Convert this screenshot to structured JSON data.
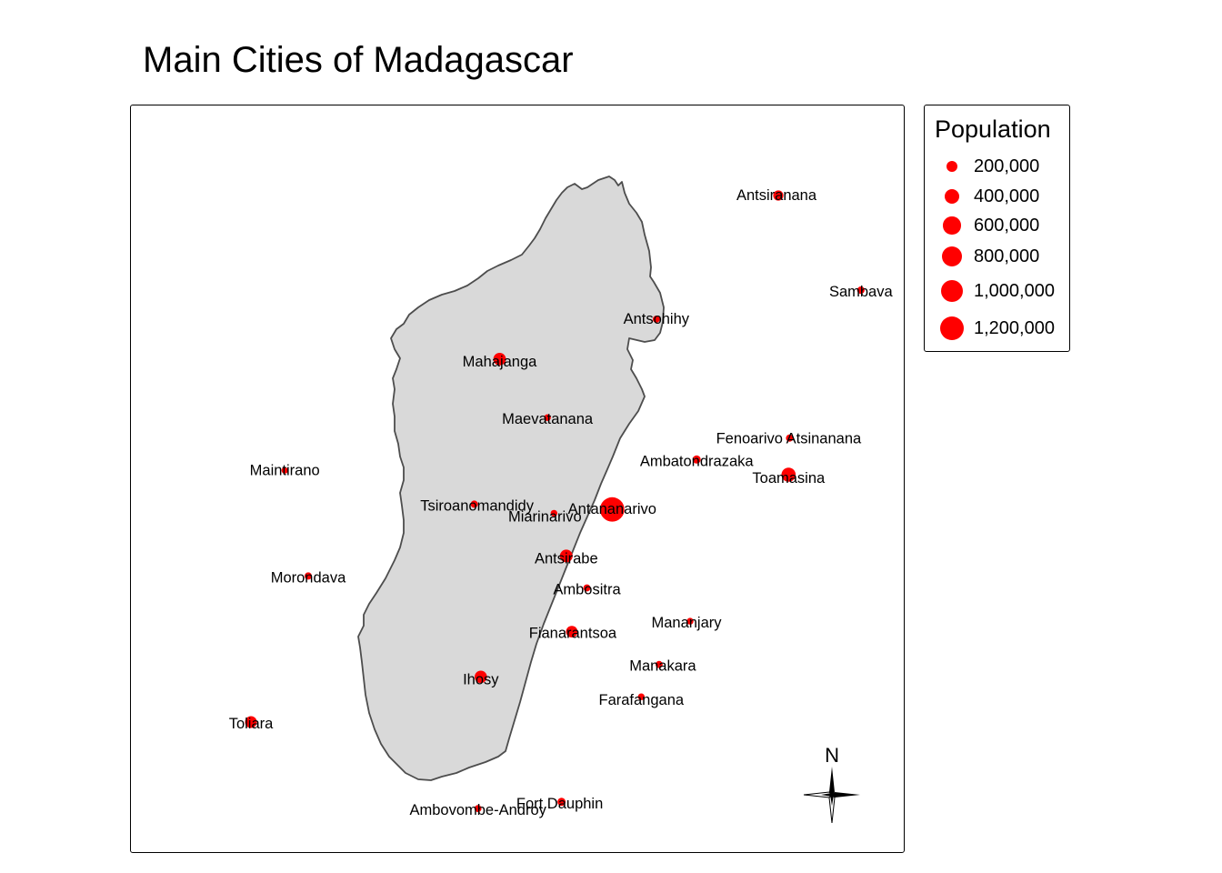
{
  "title": "Main Cities of Madagascar",
  "colors": {
    "land": "#d9d9d9",
    "coast": "#4d4d4d",
    "city": "#ff0000",
    "background": "#ffffff"
  },
  "legend": {
    "title": "Population",
    "items": [
      {
        "label": "200,000",
        "value": 200000
      },
      {
        "label": "400,000",
        "value": 400000
      },
      {
        "label": "600,000",
        "value": 600000
      },
      {
        "label": "800,000",
        "value": 800000
      },
      {
        "label": "1,000,000",
        "value": 1000000
      },
      {
        "label": "1,200,000",
        "value": 1200000
      }
    ]
  },
  "compass": {
    "north_label": "N",
    "icon": "north-arrow-compass-icon"
  },
  "cities": [
    {
      "name": "Antsiranana",
      "lon": 49.29,
      "lat": -12.28,
      "population": 130000
    },
    {
      "name": "Sambava",
      "lon": 50.17,
      "lat": -14.27,
      "population": 45000
    },
    {
      "name": "Antsohihy",
      "lon": 47.99,
      "lat": -14.88,
      "population": 35000
    },
    {
      "name": "Mahajanga",
      "lon": 46.32,
      "lat": -15.72,
      "population": 240000
    },
    {
      "name": "Maevatanana",
      "lon": 46.83,
      "lat": -16.95,
      "population": 30000
    },
    {
      "name": "Fenoarivo Atsinanana",
      "lon": 49.41,
      "lat": -17.38,
      "population": 40000
    },
    {
      "name": "Ambatondrazaka",
      "lon": 48.42,
      "lat": -17.83,
      "population": 60000
    },
    {
      "name": "Toamasina",
      "lon": 49.4,
      "lat": -18.15,
      "population": 330000
    },
    {
      "name": "Maintirano",
      "lon": 44.03,
      "lat": -18.06,
      "population": 25000
    },
    {
      "name": "Tsiroanomandidy",
      "lon": 46.05,
      "lat": -18.77,
      "population": 40000
    },
    {
      "name": "Miarinarivo",
      "lon": 46.9,
      "lat": -18.96,
      "population": 30000
    },
    {
      "name": "Antananarivo",
      "lon": 47.52,
      "lat": -18.88,
      "population": 1300000
    },
    {
      "name": "Antsirabe",
      "lon": 47.03,
      "lat": -19.86,
      "population": 250000
    },
    {
      "name": "Morondava",
      "lon": 44.28,
      "lat": -20.28,
      "population": 40000
    },
    {
      "name": "Ambositra",
      "lon": 47.25,
      "lat": -20.53,
      "population": 35000
    },
    {
      "name": "Mananjary",
      "lon": 48.35,
      "lat": -21.23,
      "population": 30000
    },
    {
      "name": "Fianarantsoa",
      "lon": 47.09,
      "lat": -21.45,
      "population": 190000
    },
    {
      "name": "Manakara",
      "lon": 48.02,
      "lat": -22.14,
      "population": 35000
    },
    {
      "name": "Ihosy",
      "lon": 46.12,
      "lat": -22.4,
      "population": 230000
    },
    {
      "name": "Farafangana",
      "lon": 47.83,
      "lat": -22.82,
      "population": 30000
    },
    {
      "name": "Toliara",
      "lon": 43.67,
      "lat": -23.35,
      "population": 200000
    },
    {
      "name": "Fort Dauphin",
      "lon": 46.98,
      "lat": -25.03,
      "population": 60000
    },
    {
      "name": "Ambovombe-Androy",
      "lon": 46.09,
      "lat": -25.17,
      "population": 35000
    }
  ]
}
